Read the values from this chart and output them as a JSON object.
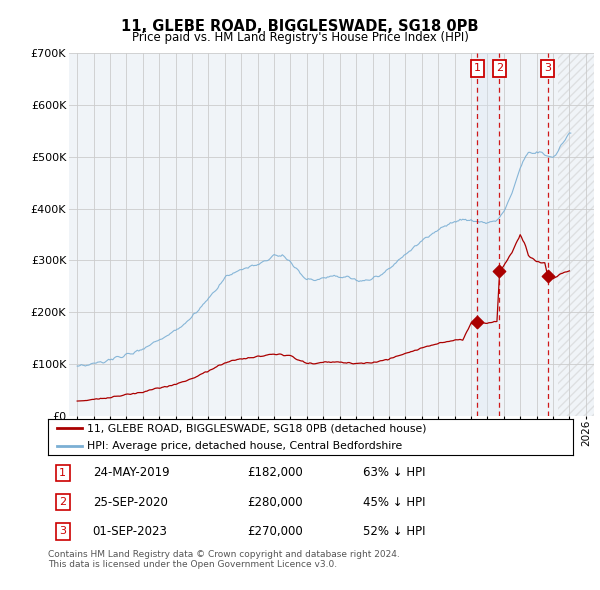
{
  "title": "11, GLEBE ROAD, BIGGLESWADE, SG18 0PB",
  "subtitle": "Price paid vs. HM Land Registry's House Price Index (HPI)",
  "hpi_label": "HPI: Average price, detached house, Central Bedfordshire",
  "property_label": "11, GLEBE ROAD, BIGGLESWADE, SG18 0PB (detached house)",
  "hpi_color": "#7bafd4",
  "property_color": "#aa0000",
  "vline_color": "#cc0000",
  "transactions": [
    {
      "num": 1,
      "date": "24-MAY-2019",
      "price": 182000,
      "hpi_pct": "63% ↓ HPI",
      "x_year": 2019.38
    },
    {
      "num": 2,
      "date": "25-SEP-2020",
      "price": 280000,
      "hpi_pct": "45% ↓ HPI",
      "x_year": 2020.73
    },
    {
      "num": 3,
      "date": "01-SEP-2023",
      "price": 270000,
      "hpi_pct": "52% ↓ HPI",
      "x_year": 2023.67
    }
  ],
  "ylim": [
    0,
    700000
  ],
  "yticks": [
    0,
    100000,
    200000,
    300000,
    400000,
    500000,
    600000,
    700000
  ],
  "ytick_labels": [
    "£0",
    "£100K",
    "£200K",
    "£300K",
    "£400K",
    "£500K",
    "£600K",
    "£700K"
  ],
  "xlim": [
    1994.5,
    2026.5
  ],
  "footer": "Contains HM Land Registry data © Crown copyright and database right 2024.\nThis data is licensed under the Open Government Licence v3.0.",
  "background_color": "#f0f4f8",
  "grid_color": "#cccccc",
  "shade_color": "#dce8f5",
  "hatch_color": "#cccccc"
}
